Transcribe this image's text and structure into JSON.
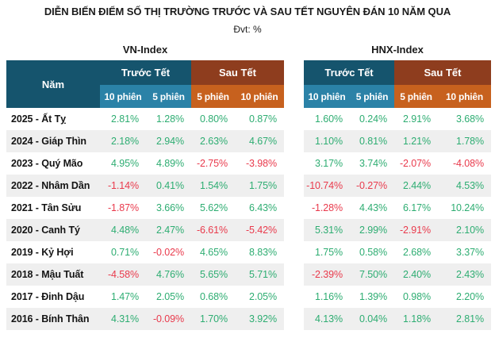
{
  "title": "DIỄN BIẾN ĐIỂM SỐ THỊ TRƯỜNG TRƯỚC VÀ SAU TẾT NGUYÊN ĐÁN 10 NĂM QUA",
  "unit_label": "Đvt: %",
  "table": {
    "group_labels": [
      "VN-Index",
      "HNX-Index"
    ],
    "year_header": "Năm",
    "before_label": "Trước Tết",
    "after_label": "Sau Tết",
    "subcols": [
      "10 phiên",
      "5 phiên",
      "5 phiên",
      "10 phiên"
    ]
  },
  "colors": {
    "header_teal": "#15546d",
    "header_blue": "#2b82a7",
    "header_rust": "#8e3d1e",
    "header_orange": "#c7611e",
    "positive_green": "#2ead72",
    "negative_red": "#e93a4c",
    "row_alt_gray": "#efefef",
    "text_dark": "#1b1b1b"
  },
  "chart_data": {
    "type": "table",
    "title": "DIỄN BIẾN ĐIỂM SỐ THỊ TRƯỜNG TRƯỚC VÀ SAU TẾT NGUYÊN ĐÁN 10 NĂM QUA",
    "unit": "%",
    "column_groups": [
      "VN-Index",
      "HNX-Index"
    ],
    "columns_per_group": [
      "Trước Tết 10 phiên",
      "Trước Tết 5 phiên",
      "Sau Tết 5 phiên",
      "Sau Tết 10 phiên"
    ],
    "rows": [
      {
        "year": "2025 - Ất Tỵ",
        "vn": [
          2.81,
          1.28,
          0.8,
          0.87
        ],
        "hnx": [
          1.6,
          0.24,
          2.91,
          3.68
        ]
      },
      {
        "year": "2024 - Giáp Thìn",
        "vn": [
          2.18,
          2.94,
          2.63,
          4.67
        ],
        "hnx": [
          1.1,
          0.81,
          1.21,
          1.78
        ]
      },
      {
        "year": "2023 - Quý Mão",
        "vn": [
          4.95,
          4.89,
          -2.75,
          -3.98
        ],
        "hnx": [
          3.17,
          3.74,
          -2.07,
          -4.08
        ]
      },
      {
        "year": "2022 - Nhâm Dần",
        "vn": [
          -1.14,
          0.41,
          1.54,
          1.75
        ],
        "hnx": [
          -10.74,
          -0.27,
          2.44,
          4.53
        ]
      },
      {
        "year": "2021 - Tân Sửu",
        "vn": [
          -1.87,
          3.66,
          5.62,
          6.43
        ],
        "hnx": [
          -1.28,
          4.43,
          6.17,
          10.24
        ]
      },
      {
        "year": "2020 - Canh Tý",
        "vn": [
          4.48,
          2.47,
          -6.61,
          -5.42
        ],
        "hnx": [
          5.31,
          2.99,
          -2.91,
          2.1
        ]
      },
      {
        "year": "2019 - Kỷ Hợi",
        "vn": [
          0.71,
          -0.02,
          4.65,
          8.83
        ],
        "hnx": [
          1.75,
          0.58,
          2.68,
          3.37
        ]
      },
      {
        "year": "2018 - Mậu Tuất",
        "vn": [
          -4.58,
          4.76,
          5.65,
          5.71
        ],
        "hnx": [
          -2.39,
          7.5,
          2.4,
          2.43
        ]
      },
      {
        "year": "2017 - Đinh Dậu",
        "vn": [
          1.47,
          2.05,
          0.68,
          2.05
        ],
        "hnx": [
          1.16,
          1.39,
          0.98,
          2.2
        ]
      },
      {
        "year": "2016 - Bính Thân",
        "vn": [
          4.31,
          -0.09,
          1.7,
          3.92
        ],
        "hnx": [
          4.13,
          0.04,
          1.18,
          2.81
        ]
      }
    ]
  }
}
